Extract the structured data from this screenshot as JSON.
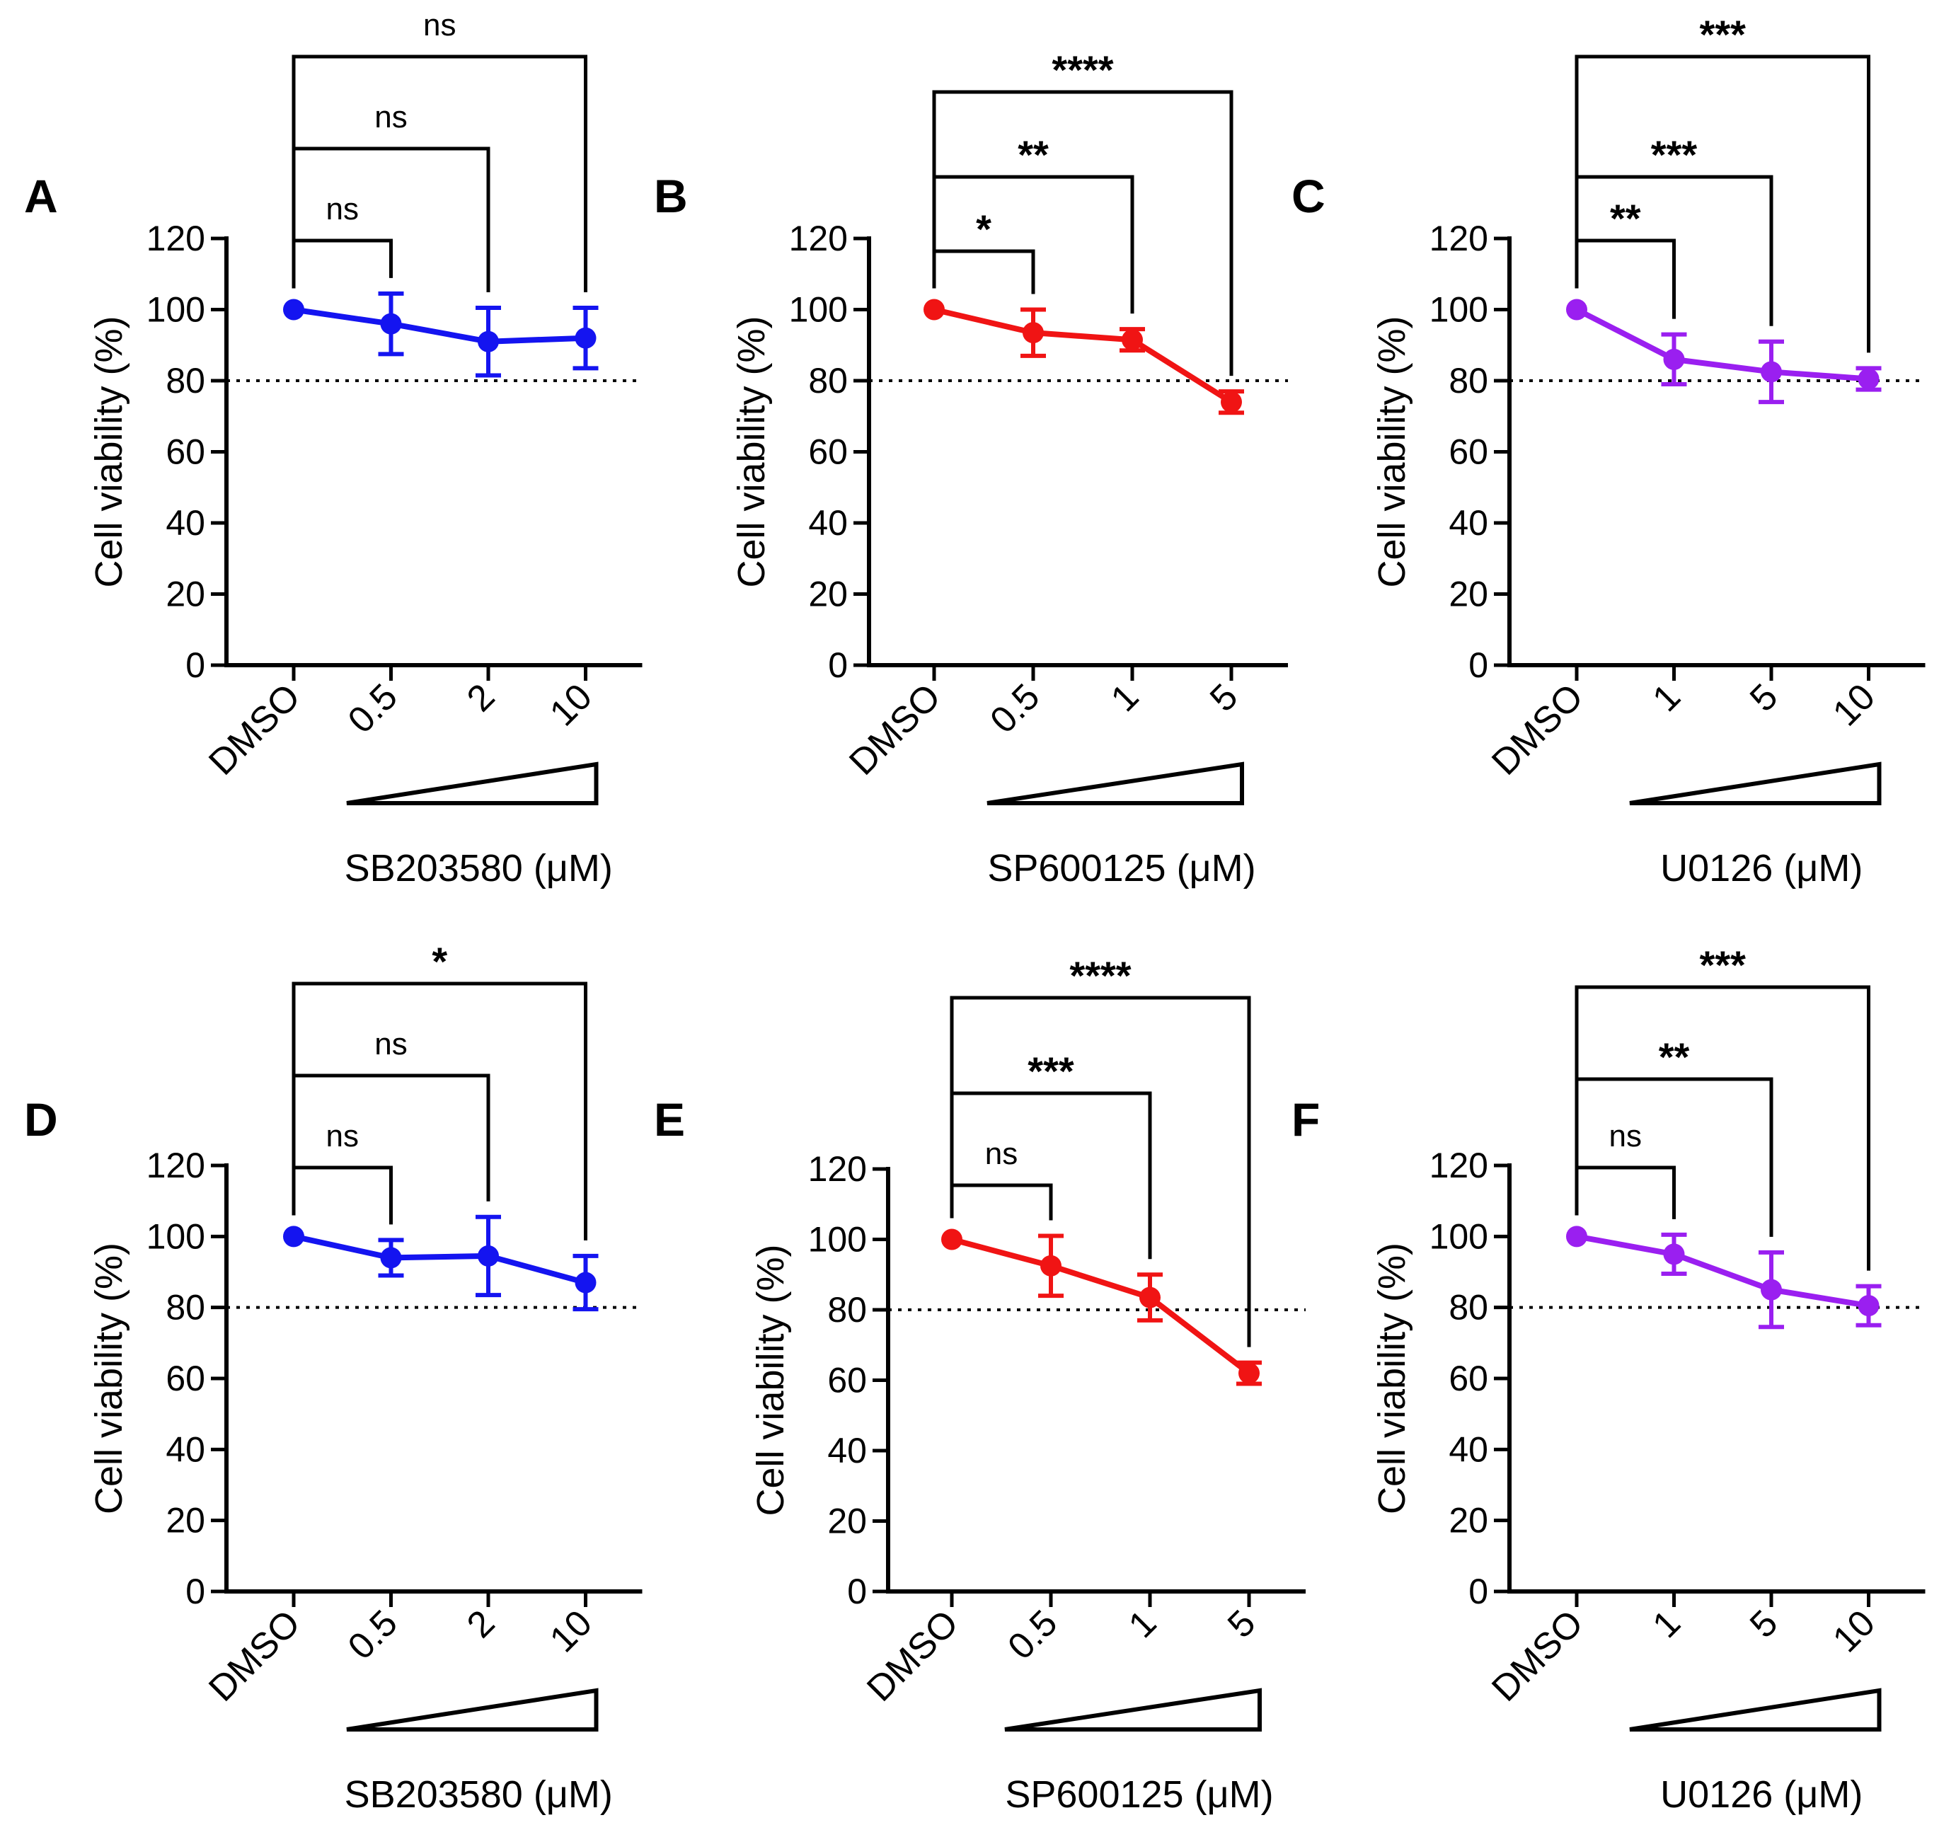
{
  "chart_data": [
    {
      "panel": "A",
      "type": "line",
      "ylabel": "Cell viability (%)",
      "xlabel": "SB203580 (μM)",
      "categories": [
        "DMSO",
        "0.5",
        "2",
        "10"
      ],
      "series": [
        {
          "name": "SB203580",
          "color": "#1414f0",
          "values": [
            100,
            96,
            91,
            92
          ],
          "errors": [
            0,
            8.5,
            9.5,
            8.5
          ]
        }
      ],
      "reference_line": 80,
      "ylim": [
        0,
        120
      ],
      "yticks": [
        "0",
        "20",
        "40",
        "60",
        "80",
        "100",
        "120"
      ],
      "comparisons": [
        {
          "from": "DMSO",
          "to": "0.5",
          "label": "ns"
        },
        {
          "from": "DMSO",
          "to": "2",
          "label": "ns"
        },
        {
          "from": "DMSO",
          "to": "10",
          "label": "ns"
        }
      ]
    },
    {
      "panel": "B",
      "type": "line",
      "ylabel": "Cell viability (%)",
      "xlabel": "SP600125 (μM)",
      "categories": [
        "DMSO",
        "0.5",
        "1",
        "5"
      ],
      "series": [
        {
          "name": "SP600125",
          "color": "#f01414",
          "values": [
            100,
            93.5,
            91.5,
            74
          ],
          "errors": [
            0,
            6.5,
            3,
            3
          ]
        }
      ],
      "reference_line": 80,
      "ylim": [
        0,
        120
      ],
      "yticks": [
        "0",
        "20",
        "40",
        "60",
        "80",
        "100",
        "120"
      ],
      "comparisons": [
        {
          "from": "DMSO",
          "to": "0.5",
          "label": "*"
        },
        {
          "from": "DMSO",
          "to": "1",
          "label": "**"
        },
        {
          "from": "DMSO",
          "to": "5",
          "label": "****"
        }
      ]
    },
    {
      "panel": "C",
      "type": "line",
      "ylabel": "Cell viability (%)",
      "xlabel": "U0126 (μM)",
      "categories": [
        "DMSO",
        "1",
        "5",
        "10"
      ],
      "series": [
        {
          "name": "U0126",
          "color": "#9a1ff0",
          "values": [
            100,
            86,
            82.5,
            80.5
          ],
          "errors": [
            0,
            7,
            8.5,
            3
          ]
        }
      ],
      "reference_line": 80,
      "ylim": [
        0,
        120
      ],
      "yticks": [
        "0",
        "20",
        "40",
        "60",
        "80",
        "100",
        "120"
      ],
      "comparisons": [
        {
          "from": "DMSO",
          "to": "1",
          "label": "**"
        },
        {
          "from": "DMSO",
          "to": "5",
          "label": "***"
        },
        {
          "from": "DMSO",
          "to": "10",
          "label": "***"
        }
      ]
    },
    {
      "panel": "D",
      "type": "line",
      "ylabel": "Cell viability (%)",
      "xlabel": "SB203580 (μM)",
      "categories": [
        "DMSO",
        "0.5",
        "2",
        "10"
      ],
      "series": [
        {
          "name": "SB203580",
          "color": "#1414f0",
          "values": [
            100,
            94,
            94.5,
            87
          ],
          "errors": [
            0,
            5,
            11,
            7.5
          ]
        }
      ],
      "reference_line": 80,
      "ylim": [
        0,
        120
      ],
      "yticks": [
        "0",
        "20",
        "40",
        "60",
        "80",
        "100",
        "120"
      ],
      "comparisons": [
        {
          "from": "DMSO",
          "to": "0.5",
          "label": "ns"
        },
        {
          "from": "DMSO",
          "to": "2",
          "label": "ns"
        },
        {
          "from": "DMSO",
          "to": "10",
          "label": "*"
        }
      ]
    },
    {
      "panel": "E",
      "type": "line",
      "ylabel": "Cell viability (%)",
      "xlabel": "SP600125 (μM)",
      "categories": [
        "DMSO",
        "0.5",
        "1",
        "5"
      ],
      "series": [
        {
          "name": "SP600125",
          "color": "#f01414",
          "values": [
            100,
            92.5,
            83.5,
            62
          ],
          "errors": [
            0,
            8.5,
            6.5,
            3
          ]
        }
      ],
      "reference_line": 80,
      "ylim": [
        0,
        120
      ],
      "yticks": [
        "0",
        "20",
        "40",
        "60",
        "80",
        "100",
        "120"
      ],
      "comparisons": [
        {
          "from": "DMSO",
          "to": "0.5",
          "label": "ns"
        },
        {
          "from": "DMSO",
          "to": "1",
          "label": "***"
        },
        {
          "from": "DMSO",
          "to": "5",
          "label": "****"
        }
      ]
    },
    {
      "panel": "F",
      "type": "line",
      "ylabel": "Cell viability (%)",
      "xlabel": "U0126 (μM)",
      "categories": [
        "DMSO",
        "1",
        "5",
        "10"
      ],
      "series": [
        {
          "name": "U0126",
          "color": "#9a1ff0",
          "values": [
            100,
            95,
            85,
            80.5
          ],
          "errors": [
            0,
            5.5,
            10.5,
            5.5
          ]
        }
      ],
      "reference_line": 80,
      "ylim": [
        0,
        120
      ],
      "yticks": [
        "0",
        "20",
        "40",
        "60",
        "80",
        "100",
        "120"
      ],
      "comparisons": [
        {
          "from": "DMSO",
          "to": "1",
          "label": "ns"
        },
        {
          "from": "DMSO",
          "to": "5",
          "label": "**"
        },
        {
          "from": "DMSO",
          "to": "10",
          "label": "***"
        }
      ]
    }
  ]
}
